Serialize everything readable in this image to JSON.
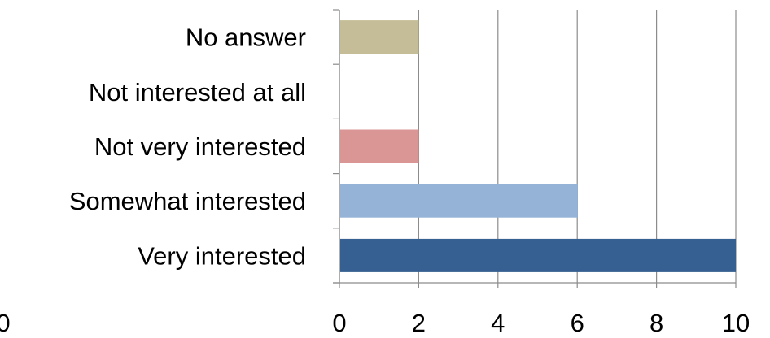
{
  "chart_data": {
    "type": "bar",
    "orientation": "horizontal",
    "categories": [
      "Very interested",
      "Somewhat interested",
      "Not very interested",
      "Not interested at all",
      "No answer"
    ],
    "values": [
      10,
      6,
      2,
      0,
      2
    ],
    "colors": [
      "#376092",
      "#95b3d7",
      "#d99694",
      "#ffffff",
      "#c4bd97"
    ],
    "xlim": [
      0,
      10
    ],
    "x_ticks": [
      "0",
      "2",
      "4",
      "6",
      "8",
      "10"
    ],
    "stray_tick": "0",
    "grid": true,
    "title": "",
    "xlabel": "",
    "ylabel": ""
  }
}
